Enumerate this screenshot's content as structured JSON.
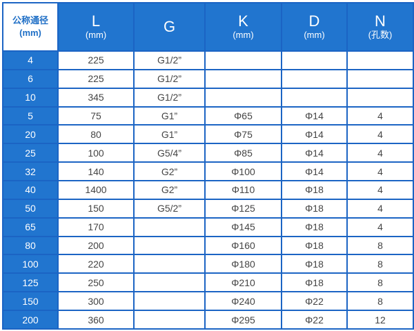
{
  "header": {
    "corner": [
      "公称通径",
      "(mm)"
    ],
    "columns": [
      {
        "label": "L",
        "unit": "(mm)"
      },
      {
        "label": "G",
        "unit": ""
      },
      {
        "label": "K",
        "unit": "(mm)"
      },
      {
        "label": "D",
        "unit": "(mm)"
      },
      {
        "label": "N",
        "unit": "(孔数)"
      }
    ]
  },
  "rows": [
    [
      "4",
      "225",
      "G1/2”",
      "",
      "",
      ""
    ],
    [
      "6",
      "225",
      "G1/2”",
      "",
      "",
      ""
    ],
    [
      "10",
      "345",
      "G1/2”",
      "",
      "",
      ""
    ],
    [
      "5",
      "75",
      "G1”",
      "Φ65",
      "Φ14",
      "4"
    ],
    [
      "20",
      "80",
      "G1”",
      "Φ75",
      "Φ14",
      "4"
    ],
    [
      "25",
      "100",
      "G5/4”",
      "Φ85",
      "Φ14",
      "4"
    ],
    [
      "32",
      "140",
      "G2”",
      "Φ100",
      "Φ14",
      "4"
    ],
    [
      "40",
      "1400",
      "G2”",
      "Φ110",
      "Φ18",
      "4"
    ],
    [
      "50",
      "150",
      "G5/2”",
      "Φ125",
      "Φ18",
      "4"
    ],
    [
      "65",
      "170",
      "",
      "Φ145",
      "Φ18",
      "4"
    ],
    [
      "80",
      "200",
      "",
      "Φ160",
      "Φ18",
      "8"
    ],
    [
      "100",
      "220",
      "",
      "Φ180",
      "Φ18",
      "8"
    ],
    [
      "125",
      "250",
      "",
      "Φ210",
      "Φ18",
      "8"
    ],
    [
      "150",
      "300",
      "",
      "Φ240",
      "Φ22",
      "8"
    ],
    [
      "200",
      "360",
      "",
      "Φ295",
      "Φ22",
      "12"
    ]
  ],
  "colors": {
    "header_bg": "#2175cf",
    "border": "#1b64c4",
    "corner_text": "#1f6fc6"
  }
}
